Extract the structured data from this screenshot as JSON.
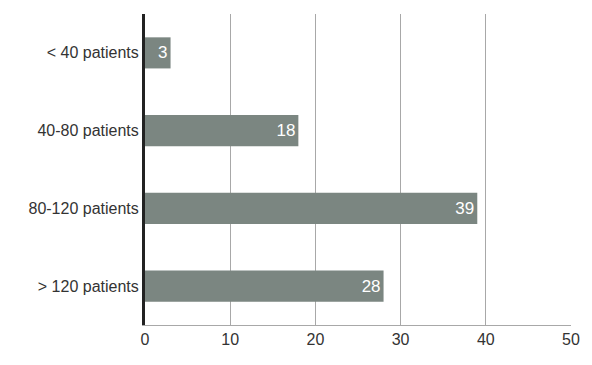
{
  "chart_data": {
    "type": "bar",
    "orientation": "horizontal",
    "categories": [
      "< 40 patients",
      "40-80 patients",
      "80-120 patients",
      "> 120 patients"
    ],
    "values": [
      3,
      18,
      39,
      28
    ],
    "color": "#7b8681",
    "xlim": [
      0,
      50
    ],
    "xticks": [
      0,
      10,
      20,
      30,
      40,
      50
    ],
    "grid": true,
    "data_labels": true
  }
}
